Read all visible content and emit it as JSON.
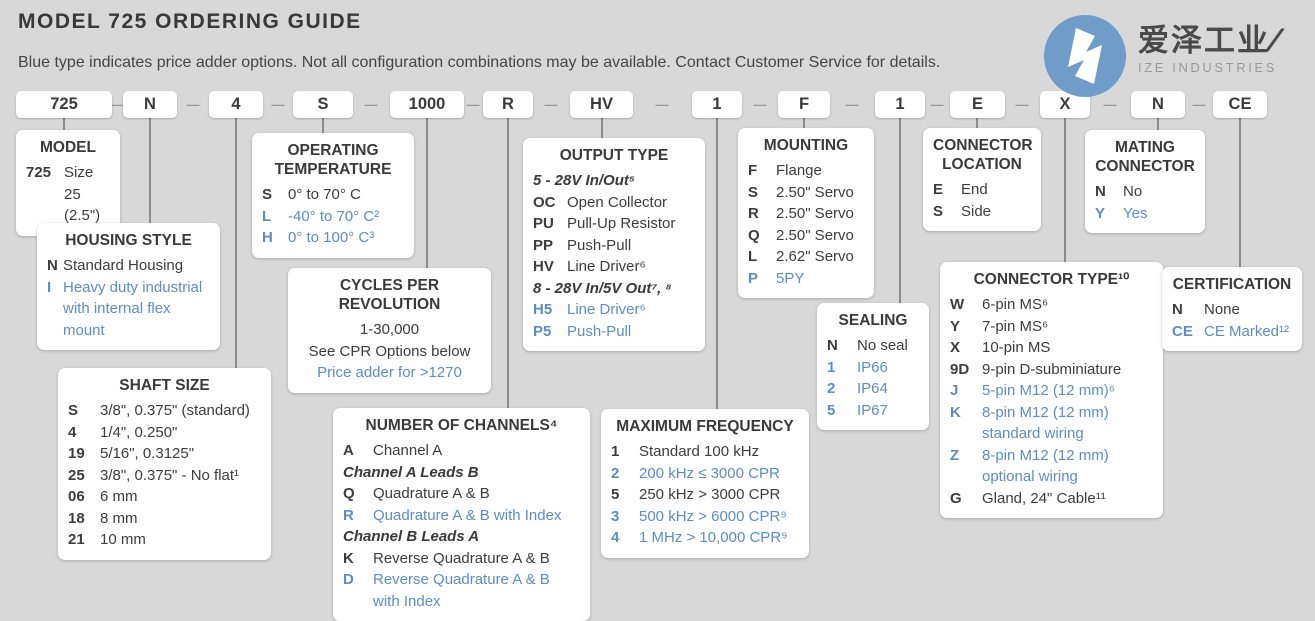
{
  "header": {
    "title": "MODEL 725 ORDERING GUIDE",
    "subtitle": "Blue type indicates price adder options. Not all configuration combinations may be available. Contact Customer Service for details."
  },
  "logo": {
    "cn": "爱泽工业",
    "slash": "/",
    "en": "IZE INDUSTRIES"
  },
  "colors": {
    "background": "#d8d8d8",
    "text_dark": "#3d3d3d",
    "price_adder_blue": "#5e8dc1",
    "logo_blue": "#6f9cc9",
    "line_gray": "#8c8c8c"
  },
  "code_row": {
    "separator": "—",
    "segments": [
      "725",
      "N",
      "4",
      "S",
      "1000",
      "R",
      "HV",
      "1",
      "F",
      "1",
      "E",
      "X",
      "N",
      "CE"
    ]
  },
  "boxes": {
    "model": {
      "title": "MODEL",
      "rows": [
        {
          "code": "725",
          "text": "Size 25 (2.5\")"
        }
      ]
    },
    "housing_style": {
      "title": "HOUSING STYLE",
      "rows": [
        {
          "code": "N",
          "text": "Standard Housing"
        },
        {
          "code": "I",
          "text": "Heavy duty industrial with internal flex mount",
          "blue": true
        }
      ]
    },
    "shaft_size": {
      "title": "SHAFT SIZE",
      "rows": [
        {
          "code": "S",
          "text": "3/8\", 0.375\" (standard)"
        },
        {
          "code": "4",
          "text": "1/4\", 0.250\""
        },
        {
          "code": "19",
          "text": "5/16\", 0.3125\""
        },
        {
          "code": "25",
          "text": "3/8\", 0.375\" - No flat¹"
        },
        {
          "code": "06",
          "text": "6 mm"
        },
        {
          "code": "18",
          "text": "8 mm"
        },
        {
          "code": "21",
          "text": "10 mm"
        }
      ]
    },
    "operating_temperature": {
      "title": "OPERATING TEMPERATURE",
      "rows": [
        {
          "code": "S",
          "text": "0° to 70° C"
        },
        {
          "code": "L",
          "text": "-40° to 70° C²",
          "blue": true
        },
        {
          "code": "H",
          "text": "0° to 100° C³",
          "blue": true
        }
      ]
    },
    "cycles_per_revolution": {
      "title": "CYCLES PER REVOLUTION",
      "rows": [
        {
          "center": true,
          "text": "1-30,000"
        },
        {
          "center": true,
          "text": "See CPR Options below"
        },
        {
          "center": true,
          "text": "Price adder for >1270",
          "blue": true
        }
      ]
    },
    "number_of_channels": {
      "title": "NUMBER OF CHANNELS⁴",
      "rows": [
        {
          "code": "A",
          "text": "Channel A"
        },
        {
          "subheader": "Channel A Leads B"
        },
        {
          "code": "Q",
          "text": "Quadrature A & B"
        },
        {
          "code": "R",
          "text": "Quadrature A & B with Index",
          "blue": true
        },
        {
          "subheader": "Channel B Leads A"
        },
        {
          "code": "K",
          "text": "Reverse Quadrature A & B"
        },
        {
          "code": "D",
          "text": "Reverse Quadrature A & B with Index",
          "blue": true
        }
      ]
    },
    "output_type": {
      "title": "OUTPUT TYPE",
      "rows": [
        {
          "subheader": "5 - 28V In/Out⁵"
        },
        {
          "code": "OC",
          "text": "Open Collector"
        },
        {
          "code": "PU",
          "text": "Pull-Up Resistor"
        },
        {
          "code": "PP",
          "text": "Push-Pull"
        },
        {
          "code": "HV",
          "text": "Line Driver⁶"
        },
        {
          "subheader": "8 - 28V In/5V Out⁷, ⁸"
        },
        {
          "code": "H5",
          "text": "Line Driver⁶",
          "blue": true
        },
        {
          "code": "P5",
          "text": "Push-Pull",
          "blue": true
        }
      ]
    },
    "maximum_frequency": {
      "title": "MAXIMUM FREQUENCY",
      "rows": [
        {
          "code": "1",
          "text": "Standard 100 kHz"
        },
        {
          "code": "2",
          "text": "200 kHz ≤ 3000 CPR",
          "blue": true
        },
        {
          "code": "5",
          "text": "250 kHz > 3000 CPR"
        },
        {
          "code": "3",
          "text": "500 kHz > 6000 CPR⁹",
          "blue": true
        },
        {
          "code": "4",
          "text": "1 MHz > 10,000 CPR⁹",
          "blue": true
        }
      ]
    },
    "mounting": {
      "title": "MOUNTING",
      "rows": [
        {
          "code": "F",
          "text": "Flange"
        },
        {
          "code": "S",
          "text": "2.50\" Servo"
        },
        {
          "code": "R",
          "text": "2.50\" Servo"
        },
        {
          "code": "Q",
          "text": "2.50\" Servo"
        },
        {
          "code": "L",
          "text": "2.62\" Servo"
        },
        {
          "code": "P",
          "text": "5PY",
          "blue": true
        }
      ]
    },
    "sealing": {
      "title": "SEALING",
      "rows": [
        {
          "code": "N",
          "text": "No seal"
        },
        {
          "code": "1",
          "text": "IP66",
          "blue": true
        },
        {
          "code": "2",
          "text": "IP64",
          "blue": true
        },
        {
          "code": "5",
          "text": "IP67",
          "blue": true
        }
      ]
    },
    "connector_location": {
      "title": "CONNECTOR LOCATION",
      "rows": [
        {
          "code": "E",
          "text": "End"
        },
        {
          "code": "S",
          "text": "Side"
        }
      ]
    },
    "connector_type": {
      "title": "CONNECTOR TYPE¹⁰",
      "rows": [
        {
          "code": "W",
          "text": "6-pin MS⁶"
        },
        {
          "code": "Y",
          "text": "7-pin MS⁶"
        },
        {
          "code": "X",
          "text": "10-pin MS"
        },
        {
          "code": "9D",
          "text": "9-pin D-subminiature"
        },
        {
          "code": "J",
          "text": "5-pin M12 (12 mm)⁶",
          "blue": true
        },
        {
          "code": "K",
          "text": "8-pin M12 (12 mm) standard wiring",
          "blue": true
        },
        {
          "code": "Z",
          "text": "8-pin M12 (12 mm) optional wiring",
          "blue": true
        },
        {
          "code": "G",
          "text": "Gland, 24\" Cable¹¹"
        }
      ]
    },
    "mating_connector": {
      "title": "MATING CONNECTOR",
      "rows": [
        {
          "code": "N",
          "text": "No"
        },
        {
          "code": "Y",
          "text": "Yes",
          "blue": true
        }
      ]
    },
    "certification": {
      "title": "CERTIFICATION",
      "rows": [
        {
          "code": "N",
          "text": "None"
        },
        {
          "code": "CE",
          "text": "CE Marked¹²",
          "blue": true
        }
      ]
    }
  }
}
